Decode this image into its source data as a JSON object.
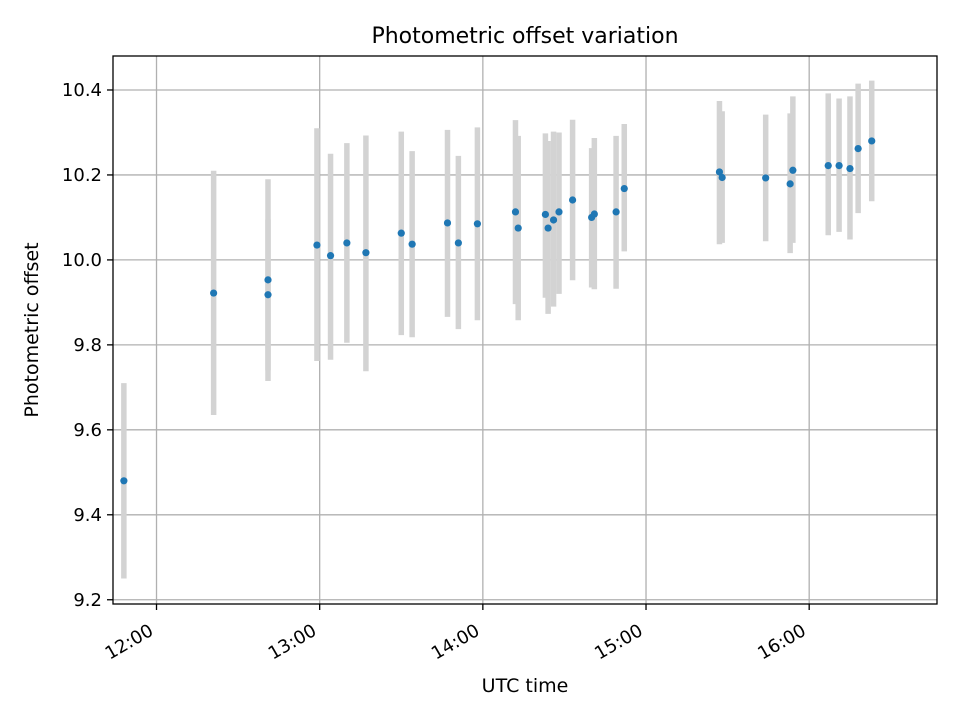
{
  "chart_data": {
    "type": "scatter",
    "title": "Photometric offset variation",
    "xlabel": "UTC time",
    "ylabel": "Photometric offset",
    "x_unit": "UTC time (HH:MM)",
    "xlim": [
      "11:44",
      "16:47"
    ],
    "ylim": [
      9.19,
      10.48
    ],
    "x_ticks": [
      "12:00",
      "13:00",
      "14:00",
      "15:00",
      "16:00"
    ],
    "y_ticks": [
      9.2,
      9.4,
      9.6,
      9.8,
      10.0,
      10.2,
      10.4
    ],
    "grid": true,
    "colors": {
      "point": "#1f77b4",
      "errorbar": "#d3d3d3",
      "grid": "#b0b0b0"
    },
    "points": [
      {
        "x": "11:48",
        "y": 9.48,
        "ylow": 9.25,
        "yhigh": 9.71
      },
      {
        "x": "12:21",
        "y": 9.922,
        "ylow": 9.635,
        "yhigh": 10.21
      },
      {
        "x": "12:41",
        "y": 9.918,
        "ylow": 9.715,
        "yhigh": 10.095
      },
      {
        "x": "12:41",
        "y": 9.953,
        "ylow": 9.74,
        "yhigh": 10.19
      },
      {
        "x": "12:59",
        "y": 10.035,
        "ylow": 9.762,
        "yhigh": 10.31
      },
      {
        "x": "13:04",
        "y": 10.01,
        "ylow": 9.765,
        "yhigh": 10.25
      },
      {
        "x": "13:10",
        "y": 10.04,
        "ylow": 9.805,
        "yhigh": 10.275
      },
      {
        "x": "13:17",
        "y": 10.017,
        "ylow": 9.738,
        "yhigh": 10.293
      },
      {
        "x": "13:30",
        "y": 10.063,
        "ylow": 9.823,
        "yhigh": 10.302
      },
      {
        "x": "13:34",
        "y": 10.037,
        "ylow": 9.818,
        "yhigh": 10.256
      },
      {
        "x": "13:47",
        "y": 10.087,
        "ylow": 9.866,
        "yhigh": 10.306
      },
      {
        "x": "13:51",
        "y": 10.04,
        "ylow": 9.837,
        "yhigh": 10.245
      },
      {
        "x": "13:58",
        "y": 10.085,
        "ylow": 9.858,
        "yhigh": 10.312
      },
      {
        "x": "14:12",
        "y": 10.113,
        "ylow": 9.896,
        "yhigh": 10.329
      },
      {
        "x": "14:13",
        "y": 10.075,
        "ylow": 9.858,
        "yhigh": 10.292
      },
      {
        "x": "14:23",
        "y": 10.107,
        "ylow": 9.911,
        "yhigh": 10.298
      },
      {
        "x": "14:24",
        "y": 10.075,
        "ylow": 9.873,
        "yhigh": 10.28
      },
      {
        "x": "14:26",
        "y": 10.094,
        "ylow": 9.89,
        "yhigh": 10.302
      },
      {
        "x": "14:28",
        "y": 10.113,
        "ylow": 9.92,
        "yhigh": 10.3
      },
      {
        "x": "14:33",
        "y": 10.141,
        "ylow": 9.952,
        "yhigh": 10.33
      },
      {
        "x": "14:40",
        "y": 10.1,
        "ylow": 9.935,
        "yhigh": 10.263
      },
      {
        "x": "14:41",
        "y": 10.108,
        "ylow": 9.931,
        "yhigh": 10.287
      },
      {
        "x": "14:49",
        "y": 10.113,
        "ylow": 9.932,
        "yhigh": 10.292
      },
      {
        "x": "14:52",
        "y": 10.168,
        "ylow": 10.02,
        "yhigh": 10.32
      },
      {
        "x": "15:27",
        "y": 10.207,
        "ylow": 10.037,
        "yhigh": 10.374
      },
      {
        "x": "15:28",
        "y": 10.194,
        "ylow": 10.04,
        "yhigh": 10.35
      },
      {
        "x": "15:44",
        "y": 10.193,
        "ylow": 10.044,
        "yhigh": 10.342
      },
      {
        "x": "15:53",
        "y": 10.179,
        "ylow": 10.016,
        "yhigh": 10.345
      },
      {
        "x": "15:54",
        "y": 10.211,
        "ylow": 10.04,
        "yhigh": 10.385
      },
      {
        "x": "16:07",
        "y": 10.222,
        "ylow": 10.058,
        "yhigh": 10.392
      },
      {
        "x": "16:11",
        "y": 10.222,
        "ylow": 10.066,
        "yhigh": 10.38
      },
      {
        "x": "16:15",
        "y": 10.215,
        "ylow": 10.048,
        "yhigh": 10.385
      },
      {
        "x": "16:18",
        "y": 10.262,
        "ylow": 10.11,
        "yhigh": 10.415
      },
      {
        "x": "16:23",
        "y": 10.28,
        "ylow": 10.138,
        "yhigh": 10.422
      }
    ]
  }
}
